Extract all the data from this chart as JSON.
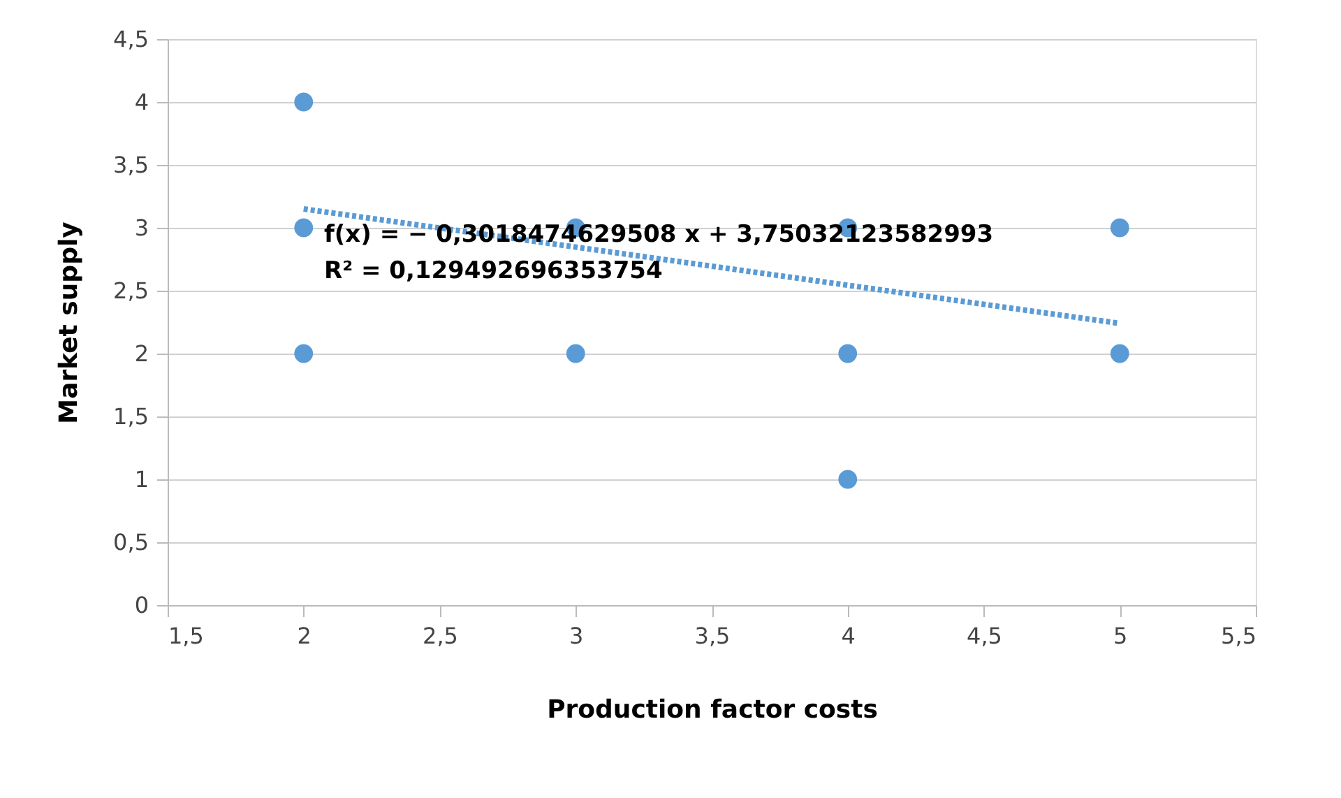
{
  "chart_data": {
    "type": "scatter",
    "xlabel": "Production factor costs",
    "ylabel": "Market supply",
    "series": [
      {
        "color": "#5b9bd5",
        "marker": "circle",
        "x": [
          2,
          2,
          2,
          3,
          3,
          4,
          4,
          4,
          5,
          5
        ],
        "values": [
          4,
          3,
          2,
          3,
          2,
          3,
          2,
          1,
          3,
          2
        ]
      },
      {
        "type": "line",
        "color": "#5b9bd5",
        "line_style": "dotted",
        "marker": "none",
        "x": [
          2,
          5
        ],
        "values": [
          3.15,
          2.24
        ]
      }
    ],
    "annotations": [
      "f(x) = − 0,3018474629508 x + 3,75032123582993",
      "R² = 0,129492696353754"
    ],
    "xlim": [
      1.5,
      5.5
    ],
    "xticks": [
      {
        "value": 1.5,
        "label": "1,5"
      },
      2,
      {
        "value": 2.5,
        "label": "2,5"
      },
      3,
      {
        "value": 3.5,
        "label": "3,5"
      },
      4,
      {
        "value": 4.5,
        "label": "4,5"
      },
      5,
      {
        "value": 5.5,
        "label": "5,5"
      }
    ],
    "ylim": [
      0,
      4.5
    ],
    "yticks": [
      0,
      {
        "value": 0.5,
        "label": "0,5"
      },
      1,
      {
        "value": 1.5,
        "label": "1,5"
      },
      2,
      {
        "value": 2.5,
        "label": "2,5"
      },
      3,
      {
        "value": 3.5,
        "label": "3,5"
      },
      4,
      {
        "value": 4.5,
        "label": "4,5"
      }
    ],
    "grid": "y"
  }
}
